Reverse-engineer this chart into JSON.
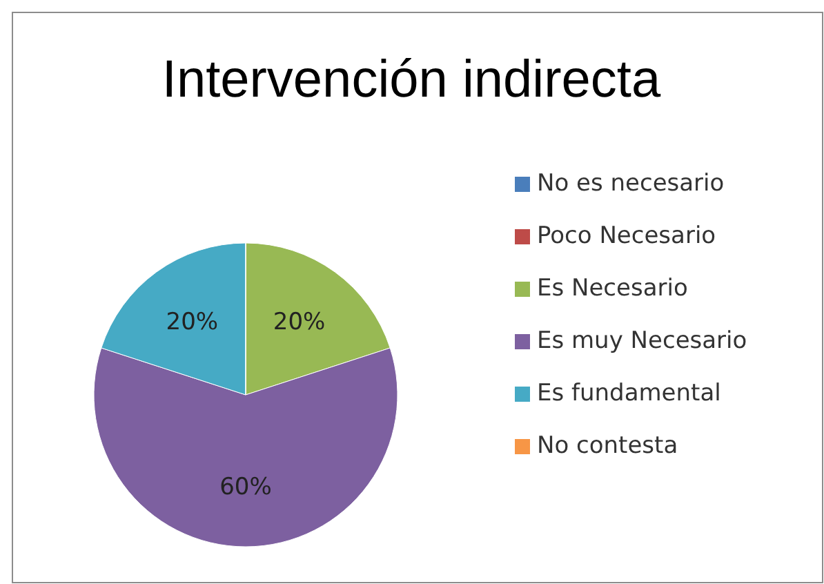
{
  "chart_data": {
    "type": "pie",
    "title": "Intervención indirecta",
    "categories": [
      "No es necesario",
      "Poco Necesario",
      "Es Necesario",
      "Es muy Necesario",
      "Es fundamental",
      "No contesta"
    ],
    "values": [
      0,
      0,
      20,
      60,
      20,
      0
    ],
    "colors": [
      "#4a7ebb",
      "#be4b48",
      "#98b954",
      "#7d60a0",
      "#46aac5",
      "#f79646"
    ],
    "value_labels": [
      null,
      null,
      "20%",
      "60%",
      "20%",
      null
    ],
    "legend": "right"
  }
}
